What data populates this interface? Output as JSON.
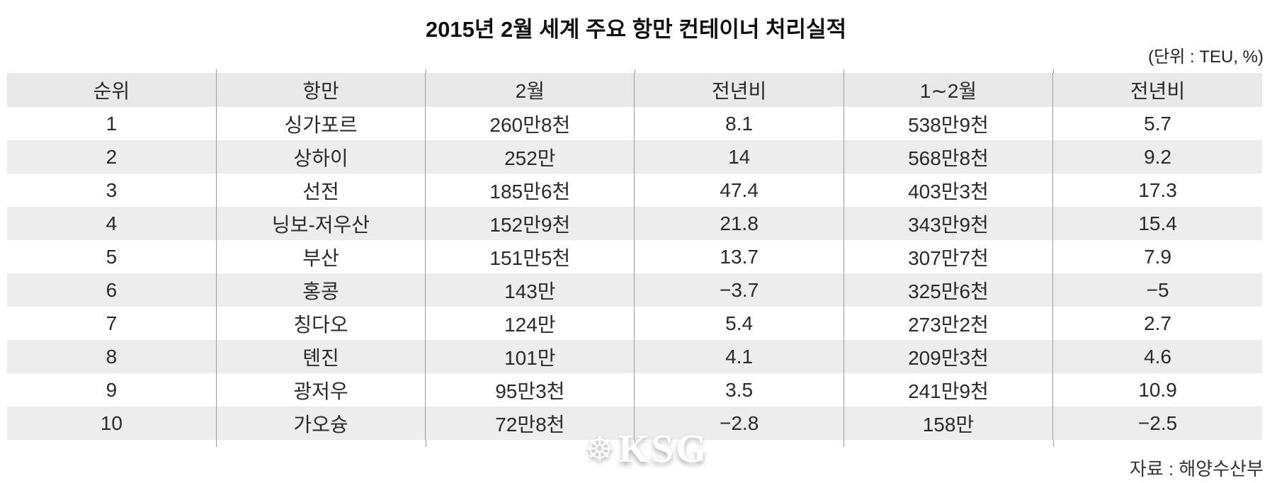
{
  "title": "2015년 2월 세계 주요 항만 컨테이너 처리실적",
  "unit_note": "(단위 : TEU, %)",
  "source_note": "자료 : 해양수산부",
  "watermark": {
    "text": "KSG",
    "icon": "ship-wheel-icon"
  },
  "colors": {
    "header_bg": "#e9e9e9",
    "stripe_bg": "#ededed",
    "divider": "#9a9a9a",
    "text": "#2a2a2a"
  },
  "table": {
    "headers": [
      "순위",
      "항만",
      "2월",
      "전년비",
      "1∼2월",
      "전년비"
    ],
    "rows": [
      {
        "rank": "1",
        "port": "싱가포르",
        "feb": "260만8천",
        "feb_yoy": "8.1",
        "janfeb": "538만9천",
        "janfeb_yoy": "5.7"
      },
      {
        "rank": "2",
        "port": "상하이",
        "feb": "252만",
        "feb_yoy": "14",
        "janfeb": "568만8천",
        "janfeb_yoy": "9.2"
      },
      {
        "rank": "3",
        "port": "선전",
        "feb": "185만6천",
        "feb_yoy": "47.4",
        "janfeb": "403만3천",
        "janfeb_yoy": "17.3"
      },
      {
        "rank": "4",
        "port": "닝보-저우산",
        "feb": "152만9천",
        "feb_yoy": "21.8",
        "janfeb": "343만9천",
        "janfeb_yoy": "15.4"
      },
      {
        "rank": "5",
        "port": "부산",
        "feb": "151만5천",
        "feb_yoy": "13.7",
        "janfeb": "307만7천",
        "janfeb_yoy": "7.9"
      },
      {
        "rank": "6",
        "port": "홍콩",
        "feb": "143만",
        "feb_yoy": "−3.7",
        "janfeb": "325만6천",
        "janfeb_yoy": "−5"
      },
      {
        "rank": "7",
        "port": "칭다오",
        "feb": "124만",
        "feb_yoy": "5.4",
        "janfeb": "273만2천",
        "janfeb_yoy": "2.7"
      },
      {
        "rank": "8",
        "port": "톈진",
        "feb": "101만",
        "feb_yoy": "4.1",
        "janfeb": "209만3천",
        "janfeb_yoy": "4.6"
      },
      {
        "rank": "9",
        "port": "광저우",
        "feb": "95만3천",
        "feb_yoy": "3.5",
        "janfeb": "241만9천",
        "janfeb_yoy": "10.9"
      },
      {
        "rank": "10",
        "port": "가오슝",
        "feb": "72만8천",
        "feb_yoy": "−2.8",
        "janfeb": "158만",
        "janfeb_yoy": "−2.5"
      }
    ]
  },
  "chart_data": {
    "type": "table",
    "title": "2015년 2월 세계 주요 항만 컨테이너 처리실적",
    "unit": "TEU, %",
    "source": "해양수산부",
    "columns": [
      "순위",
      "항만",
      "2월",
      "전년비",
      "1∼2월",
      "전년비"
    ],
    "rows": [
      [
        "1",
        "싱가포르",
        "260만8천",
        "8.1",
        "538만9천",
        "5.7"
      ],
      [
        "2",
        "상하이",
        "252만",
        "14",
        "568만8천",
        "9.2"
      ],
      [
        "3",
        "선전",
        "185만6천",
        "47.4",
        "403만3천",
        "17.3"
      ],
      [
        "4",
        "닝보-저우산",
        "152만9천",
        "21.8",
        "343만9천",
        "15.4"
      ],
      [
        "5",
        "부산",
        "151만5천",
        "13.7",
        "307만7천",
        "7.9"
      ],
      [
        "6",
        "홍콩",
        "143만",
        "-3.7",
        "325만6천",
        "-5"
      ],
      [
        "7",
        "칭다오",
        "124만",
        "5.4",
        "273만2천",
        "2.7"
      ],
      [
        "8",
        "톈진",
        "101만",
        "4.1",
        "209만3천",
        "4.6"
      ],
      [
        "9",
        "광저우",
        "95만3천",
        "3.5",
        "241만9천",
        "10.9"
      ],
      [
        "10",
        "가오슝",
        "72만8천",
        "-2.8",
        "158만",
        "-2.5"
      ]
    ]
  }
}
